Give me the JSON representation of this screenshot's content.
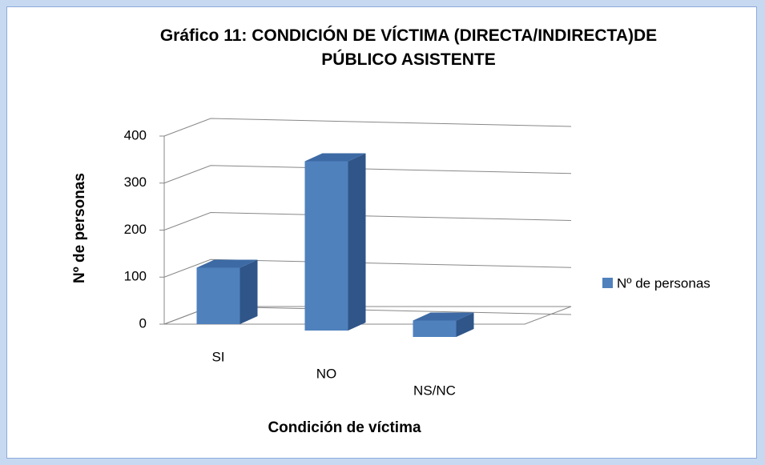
{
  "chart_data": {
    "type": "bar",
    "title": "Gráfico 11: CONDICIÓN DE VÍCTIMA (DIRECTA/INDIRECTA)DE PÚBLICO ASISTENTE",
    "x_label": "Condición de víctima",
    "y_label": "Nº de personas",
    "categories": [
      "SI",
      "NO",
      "NS/NC"
    ],
    "series": [
      {
        "name": "Nº de personas",
        "color": "#4f81bd",
        "values": [
          120,
          360,
          35
        ]
      }
    ],
    "ylim": [
      0,
      400
    ],
    "yticks": [
      0,
      100,
      200,
      300,
      400
    ],
    "grid": true,
    "legend": "right"
  }
}
